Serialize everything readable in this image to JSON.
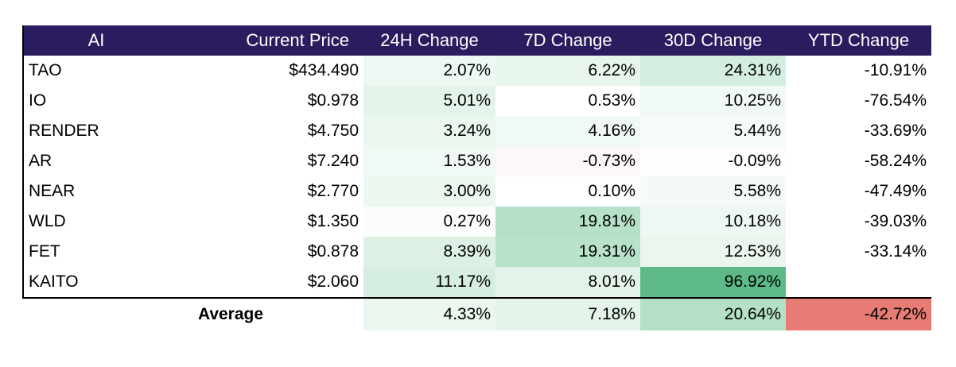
{
  "headers": [
    "AI",
    "Current Price",
    "24H Change",
    "7D Change",
    "30D Change",
    "YTD Change"
  ],
  "rows": [
    {
      "name": "TAO",
      "price": "$434.490",
      "h24": "2.07%",
      "d7": "6.22%",
      "d30": "24.31%",
      "ytd": "-10.91%"
    },
    {
      "name": "IO",
      "price": "$0.978",
      "h24": "5.01%",
      "d7": "0.53%",
      "d30": "10.25%",
      "ytd": "-76.54%"
    },
    {
      "name": "RENDER",
      "price": "$4.750",
      "h24": "3.24%",
      "d7": "4.16%",
      "d30": "5.44%",
      "ytd": "-33.69%"
    },
    {
      "name": "AR",
      "price": "$7.240",
      "h24": "1.53%",
      "d7": "-0.73%",
      "d30": "-0.09%",
      "ytd": "-58.24%"
    },
    {
      "name": "NEAR",
      "price": "$2.770",
      "h24": "3.00%",
      "d7": "0.10%",
      "d30": "5.58%",
      "ytd": "-47.49%"
    },
    {
      "name": "WLD",
      "price": "$1.350",
      "h24": "0.27%",
      "d7": "19.81%",
      "d30": "10.18%",
      "ytd": "-39.03%"
    },
    {
      "name": "FET",
      "price": "$0.878",
      "h24": "8.39%",
      "d7": "19.31%",
      "d30": "12.53%",
      "ytd": "-33.14%"
    },
    {
      "name": "KAITO",
      "price": "$2.060",
      "h24": "11.17%",
      "d7": "8.01%",
      "d30": "96.92%",
      "ytd": ""
    }
  ],
  "average": {
    "label": "Average",
    "h24": "4.33%",
    "d7": "7.18%",
    "d30": "20.64%",
    "ytd": "-42.72%"
  },
  "colors": {
    "header_bg": "#2a1c5e",
    "header_text": "#ffffff",
    "cells": [
      {
        "h24": "#eef8f2",
        "d7": "#e7f5ec",
        "d30": "#d3ede0",
        "ytd": "#ffffff"
      },
      {
        "h24": "#e5f4eb",
        "d7": "#ffffff",
        "d30": "#f0f9f3",
        "ytd": "#ffffff"
      },
      {
        "h24": "#ebf6ef",
        "d7": "#f1f9f4",
        "d30": "#f5fbf7",
        "ytd": "#ffffff"
      },
      {
        "h24": "#f0f9f3",
        "d7": "#fdf7f7",
        "d30": "#fefcfc",
        "ytd": "#ffffff"
      },
      {
        "h24": "#ecf7ef",
        "d7": "#ffffff",
        "d30": "#f4fbf6",
        "ytd": "#ffffff"
      },
      {
        "h24": "#fafdfb",
        "d7": "#b6e1c9",
        "d30": "#eef8f2",
        "ytd": "#ffffff"
      },
      {
        "h24": "#dcf1e4",
        "d7": "#b9e2cb",
        "d30": "#ebf6ef",
        "ytd": "#ffffff"
      },
      {
        "h24": "#d6eedf",
        "d7": "#e3f3e9",
        "d30": "#5dba86",
        "ytd": "#ffffff"
      }
    ],
    "average": {
      "h24": "#eaf6ee",
      "d7": "#e3f3e9",
      "d30": "#b4e0c7",
      "ytd": "#e67c73"
    }
  }
}
